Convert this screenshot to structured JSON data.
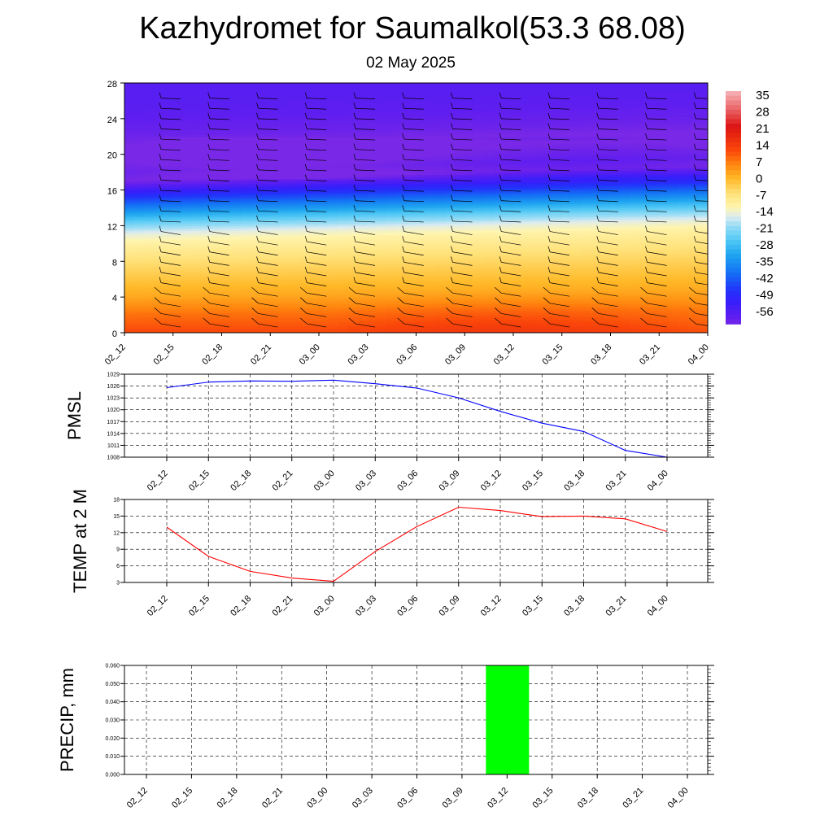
{
  "title": "Kazhydromet for Saumalkol(53.3 68.08)",
  "subtitle": "02 May 2025",
  "colors": {
    "pmsl_line": "#0000ff",
    "temp_line": "#ff0000",
    "precip_bar": "#00ff00",
    "wind_barb": "#000000"
  },
  "chart_data": [
    {
      "type": "heatmap",
      "title": "Kazhydromet for Saumalkol(53.3 68.08)",
      "subtitle": "02 May 2025",
      "x_tick_labels": [
        "02_12",
        "02_15",
        "02_18",
        "02_21",
        "03_00",
        "03_03",
        "03_06",
        "03_09",
        "03_12",
        "03_15",
        "03_18",
        "03_21",
        "04_00"
      ],
      "y_ticks": [
        0,
        4,
        8,
        12,
        16,
        20,
        24,
        28
      ],
      "ylim": [
        0,
        28
      ],
      "colorbar": {
        "labels": [
          "35",
          "28",
          "21",
          "14",
          "7",
          "0",
          "-7",
          "-14",
          "-21",
          "-28",
          "-35",
          "-42",
          "-49",
          "-56"
        ],
        "range": [
          -60,
          38
        ]
      },
      "temperature_profile_by_level": {
        "levels": [
          0,
          2,
          4,
          6,
          8,
          10,
          11,
          12,
          13,
          14,
          15,
          16,
          17,
          18,
          19,
          20,
          22,
          24,
          26,
          28
        ],
        "values": [
          14,
          10,
          4,
          0,
          -4,
          -9,
          -13,
          -20,
          -28,
          -36,
          -44,
          -52,
          -60,
          -58,
          -60,
          -62,
          -58,
          -56,
          -55,
          -55
        ]
      },
      "wind_barbs": "present"
    },
    {
      "type": "line",
      "ylabel": "PMSL",
      "x": [
        "02_12",
        "02_15",
        "02_18",
        "02_21",
        "03_00",
        "03_03",
        "03_06",
        "03_09",
        "03_12",
        "03_15",
        "03_18",
        "03_21",
        "04_00"
      ],
      "y_ticks": [
        "1008",
        "1011",
        "1014",
        "1017",
        "1020",
        "1023",
        "1026",
        "1029"
      ],
      "ylim": [
        1008,
        1029
      ],
      "series": [
        {
          "values": [
            1025.6,
            1027.0,
            1027.3,
            1027.2,
            1027.5,
            1026.6,
            1025.5,
            1023.0,
            1019.6,
            1016.6,
            1014.5,
            1009.7,
            1008.0
          ]
        }
      ],
      "grid": true
    },
    {
      "type": "line",
      "ylabel": "TEMP at 2 M",
      "x": [
        "02_12",
        "02_15",
        "02_18",
        "02_21",
        "03_00",
        "03_03",
        "03_06",
        "03_09",
        "03_12",
        "03_15",
        "03_18",
        "03_21",
        "04_00"
      ],
      "y_ticks": [
        "3",
        "6",
        "9",
        "12",
        "15",
        "18"
      ],
      "ylim": [
        3,
        18
      ],
      "series": [
        {
          "values": [
            13.0,
            7.7,
            5.0,
            3.8,
            3.2,
            8.6,
            13.1,
            16.6,
            16.0,
            14.9,
            15.0,
            14.5,
            12.2
          ]
        }
      ],
      "grid": true
    },
    {
      "type": "bar",
      "ylabel": "PRECIP, mm",
      "x": [
        "02_12",
        "02_15",
        "02_18",
        "02_21",
        "03_00",
        "03_03",
        "03_06",
        "03_09",
        "03_12",
        "03_15",
        "03_18",
        "03_21",
        "04_00"
      ],
      "y_ticks": [
        "0.000",
        "0.010",
        "0.020",
        "0.030",
        "0.040",
        "0.050",
        "0.060"
      ],
      "ylim": [
        0,
        0.06
      ],
      "values": [
        0,
        0,
        0,
        0,
        0,
        0,
        0,
        0,
        0.06,
        0,
        0,
        0,
        0
      ],
      "grid": true
    }
  ]
}
